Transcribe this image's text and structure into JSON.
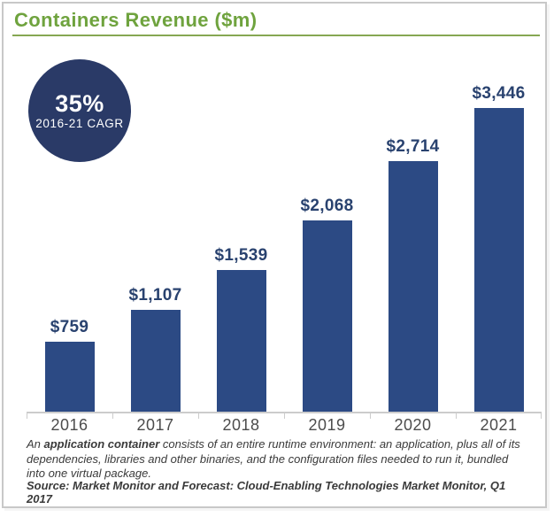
{
  "header": {
    "title": "Containers Revenue ($m)"
  },
  "badge": {
    "value": "35%",
    "label": "2016-21 CAGR"
  },
  "chart_data": {
    "type": "bar",
    "title": "Containers Revenue ($m)",
    "categories": [
      "2016",
      "2017",
      "2018",
      "2019",
      "2020",
      "2021"
    ],
    "values": [
      759,
      1107,
      1539,
      2068,
      2714,
      3446
    ],
    "value_labels": [
      "$759",
      "$1,107",
      "$1,539",
      "$2,068",
      "$2,714",
      "$3,446"
    ],
    "xlabel": "",
    "ylabel": "Revenue ($m)",
    "ylim": [
      0,
      3550
    ],
    "grid": false,
    "legend": "none",
    "bar_color": "#2c4a84",
    "annotation": {
      "text": "35% 2016-21 CAGR",
      "position": "top-left"
    }
  },
  "footnote": {
    "prefix": "An ",
    "bold": "application container",
    "rest": " consists of an entire runtime environment: an application, plus all of its dependencies, libraries and other binaries, and the configuration files needed to run it, bundled into one virtual package."
  },
  "source": "Source: Market Monitor and Forecast: Cloud-Enabling Technologies Market Monitor, Q1 2017",
  "colors": {
    "title_green": "#6fa33e",
    "underline_green": "#86a752",
    "bar_navy": "#2c4a84",
    "label_navy": "#29426f",
    "badge_navy": "#2a3a67",
    "axis_gray": "#cccccc",
    "text_gray": "#4c4c4c",
    "border_gray": "#c8c8c8"
  }
}
